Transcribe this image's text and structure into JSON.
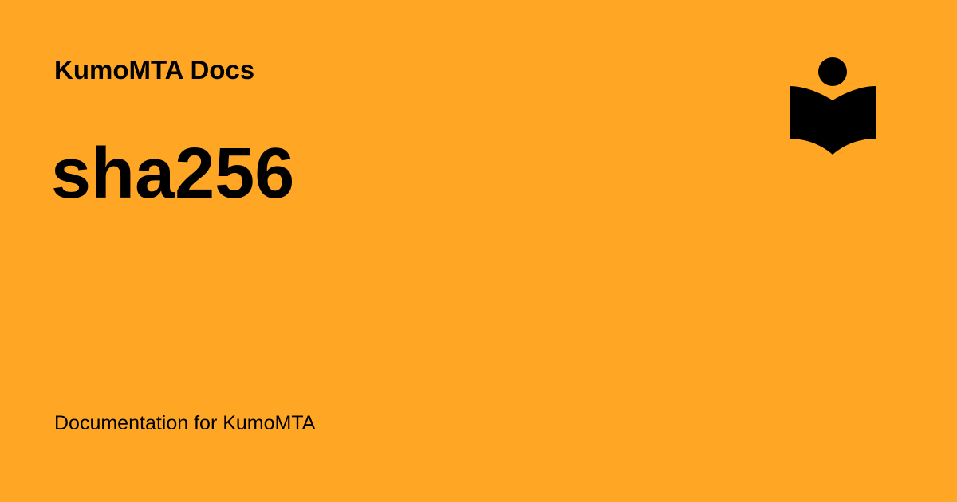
{
  "site": {
    "name": "KumoMTA Docs",
    "description": "Documentation for KumoMTA"
  },
  "page": {
    "title": "sha256"
  },
  "logo": {
    "icon": "book-reader-icon",
    "color": "#000000"
  },
  "colors": {
    "background": "#ffa724",
    "text": "#000000"
  }
}
